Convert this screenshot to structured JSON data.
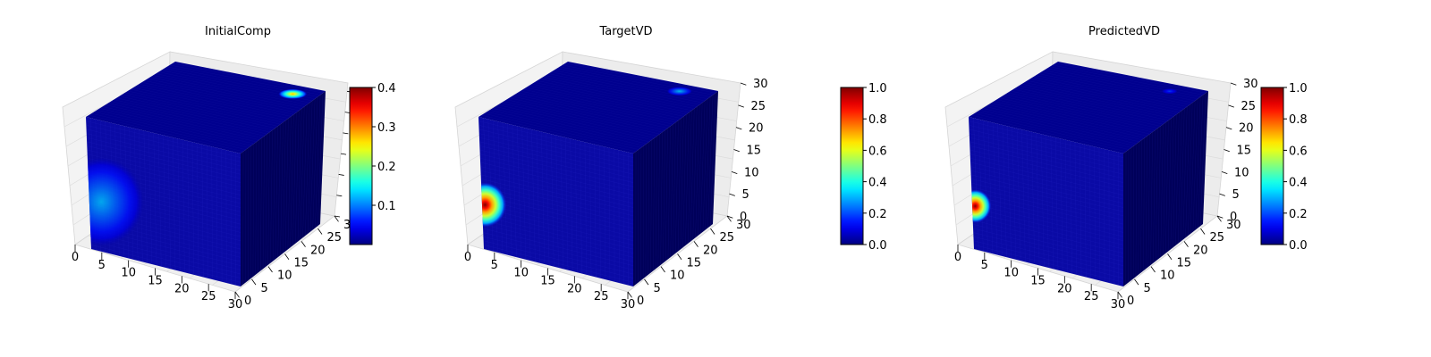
{
  "chart_data": [
    {
      "type": "voxel-3d",
      "title": "InitialComp",
      "x_ticks": [
        "0",
        "5",
        "10",
        "15",
        "20",
        "25",
        "30"
      ],
      "y_ticks": [
        "0",
        "5",
        "10",
        "15",
        "20",
        "25",
        "30"
      ],
      "z_ticks": [],
      "colorbar": {
        "colormap": "jet",
        "min": 0.0,
        "max": 0.4,
        "ticks": [
          "0.1",
          "0.2",
          "0.3",
          "0.4"
        ]
      },
      "features": [
        {
          "face": "front",
          "u": 0.08,
          "v": 0.38,
          "radius": 0.32,
          "value": 0.13
        },
        {
          "face": "top",
          "u": 0.85,
          "v": 0.88,
          "radius": 0.09,
          "value": 0.28
        }
      ]
    },
    {
      "type": "voxel-3d",
      "title": "TargetVD",
      "x_ticks": [
        "0",
        "5",
        "10",
        "15",
        "20",
        "25",
        "30"
      ],
      "y_ticks": [
        "0",
        "5",
        "10",
        "15",
        "20",
        "25",
        "30"
      ],
      "z_ticks": [
        "0",
        "5",
        "10",
        "15",
        "20",
        "25",
        "30"
      ],
      "colorbar": {
        "colormap": "jet",
        "min": 0.0,
        "max": 1.0,
        "ticks": [
          "0.0",
          "0.2",
          "0.4",
          "0.6",
          "0.8",
          "1.0"
        ]
      },
      "features": [
        {
          "face": "front",
          "u": 0.02,
          "v": 0.34,
          "radius": 0.16,
          "value": 1.0
        },
        {
          "face": "top",
          "u": 0.8,
          "v": 0.9,
          "radius": 0.08,
          "value": 0.35
        }
      ]
    },
    {
      "type": "voxel-3d",
      "title": "PredictedVD",
      "x_ticks": [
        "0",
        "5",
        "10",
        "15",
        "20",
        "25",
        "30"
      ],
      "y_ticks": [
        "0",
        "5",
        "10",
        "15",
        "20",
        "25",
        "30"
      ],
      "z_ticks": [
        "0",
        "5",
        "10",
        "15",
        "20",
        "25",
        "30"
      ],
      "colorbar": {
        "colormap": "jet",
        "min": 0.0,
        "max": 1.0,
        "ticks": [
          "0.0",
          "0.2",
          "0.4",
          "0.6",
          "0.8",
          "1.0"
        ]
      },
      "features": [
        {
          "face": "front",
          "u": 0.02,
          "v": 0.33,
          "radius": 0.12,
          "value": 1.0
        },
        {
          "face": "top",
          "u": 0.8,
          "v": 0.9,
          "radius": 0.05,
          "value": 0.2
        }
      ]
    }
  ]
}
